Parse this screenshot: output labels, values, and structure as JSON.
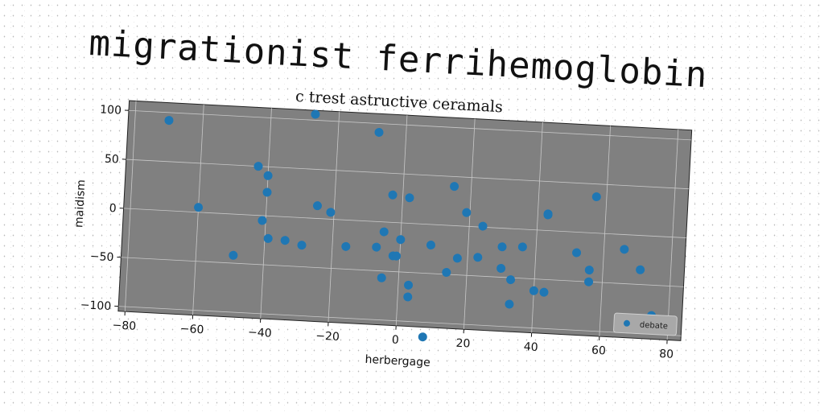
{
  "page": {
    "title": "migrationist ferrihemoglobin"
  },
  "chart_data": {
    "type": "scatter",
    "title": "c trest astructive ceramals",
    "xlabel": "herbergage",
    "ylabel": "maidism",
    "xlim": [
      -82,
      84
    ],
    "ylim": [
      -105,
      110
    ],
    "xticks": [
      -80,
      -60,
      -40,
      -20,
      0,
      20,
      40,
      60,
      80
    ],
    "yticks": [
      -100,
      -50,
      0,
      50,
      100
    ],
    "grid": true,
    "background_color": "#808080",
    "legend_position": "lower-right",
    "series": [
      {
        "name": "debate",
        "color": "#1f77b4",
        "points": [
          [
            -70,
            92
          ],
          [
            -60,
            5
          ],
          [
            -49,
            -42
          ],
          [
            -43,
            50
          ],
          [
            -41,
            -5
          ],
          [
            -40,
            41
          ],
          [
            -40,
            24
          ],
          [
            -39,
            -23
          ],
          [
            -34,
            -24
          ],
          [
            -29,
            -28
          ],
          [
            -27,
            106
          ],
          [
            -25,
            13
          ],
          [
            -21,
            7
          ],
          [
            -16,
            -27
          ],
          [
            -8,
            91
          ],
          [
            -7,
            -26
          ],
          [
            -5,
            -10
          ],
          [
            -5,
            -57
          ],
          [
            -3,
            28
          ],
          [
            -2,
            -34
          ],
          [
            -1,
            -34
          ],
          [
            0,
            -17
          ],
          [
            2,
            26
          ],
          [
            3,
            -75
          ],
          [
            3,
            -63
          ],
          [
            8,
            -115
          ],
          [
            9,
            -21
          ],
          [
            14,
            -48
          ],
          [
            15,
            40
          ],
          [
            17,
            -33
          ],
          [
            19,
            14
          ],
          [
            23,
            -31
          ],
          [
            24,
            1
          ],
          [
            30,
            -19
          ],
          [
            30,
            -41
          ],
          [
            33,
            -52
          ],
          [
            33,
            -77
          ],
          [
            36,
            -18
          ],
          [
            40,
            -62
          ],
          [
            43,
            -63
          ],
          [
            43,
            17
          ],
          [
            43,
            16
          ],
          [
            52,
            -21
          ],
          [
            56,
            -50
          ],
          [
            56,
            -38
          ],
          [
            57,
            37
          ],
          [
            66,
            -15
          ],
          [
            71,
            -35
          ],
          [
            75,
            -81
          ]
        ]
      }
    ]
  }
}
